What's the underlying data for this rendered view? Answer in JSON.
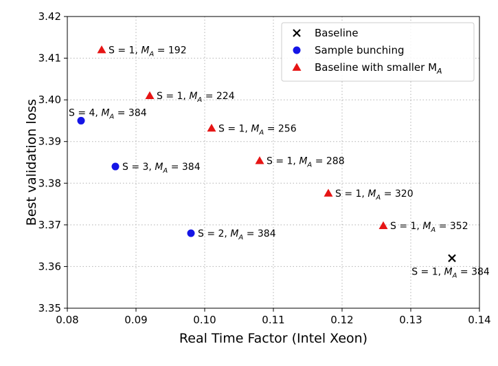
{
  "chart_data": {
    "type": "scatter",
    "xlabel": "Real Time Factor (Intel Xeon)",
    "ylabel": "Best validation loss",
    "xlim": [
      0.08,
      0.14
    ],
    "ylim": [
      3.35,
      3.42
    ],
    "xticks": [
      0.08,
      0.09,
      0.1,
      0.11,
      0.12,
      0.13,
      0.14
    ],
    "xtick_labels": [
      "0.08",
      "0.09",
      "0.10",
      "0.11",
      "0.12",
      "0.13",
      "0.14"
    ],
    "yticks": [
      3.35,
      3.36,
      3.37,
      3.38,
      3.39,
      3.4,
      3.41,
      3.42
    ],
    "ytick_labels": [
      "3.35",
      "3.36",
      "3.37",
      "3.38",
      "3.39",
      "3.40",
      "3.41",
      "3.42"
    ],
    "grid": true,
    "legend_position": "top-right",
    "series": [
      {
        "name": "Baseline",
        "marker": "x",
        "color": "#000000",
        "points": [
          {
            "x": 0.136,
            "y": 3.362,
            "label_s": "S = 1, ",
            "label_m": "M",
            "label_sub": "A",
            "label_val": " = 384",
            "anchor": "below"
          }
        ]
      },
      {
        "name": "Sample bunching",
        "marker": "circle",
        "color": "#1515e6",
        "points": [
          {
            "x": 0.082,
            "y": 3.395,
            "label_s": "S = 4, ",
            "label_m": "M",
            "label_sub": "A",
            "label_val": " = 384",
            "anchor": "above"
          },
          {
            "x": 0.087,
            "y": 3.384,
            "label_s": "S = 3, ",
            "label_m": "M",
            "label_sub": "A",
            "label_val": " = 384",
            "anchor": "right"
          },
          {
            "x": 0.098,
            "y": 3.368,
            "label_s": "S = 2, ",
            "label_m": "M",
            "label_sub": "A",
            "label_val": " = 384",
            "anchor": "right"
          }
        ]
      },
      {
        "name": "Baseline with smaller M",
        "name_sub": "A",
        "marker": "triangle",
        "color": "#e61515",
        "points": [
          {
            "x": 0.085,
            "y": 3.412,
            "label_s": "S = 1, ",
            "label_m": "M",
            "label_sub": "A",
            "label_val": " = 192",
            "anchor": "right"
          },
          {
            "x": 0.092,
            "y": 3.401,
            "label_s": "S = 1, ",
            "label_m": "M",
            "label_sub": "A",
            "label_val": " = 224",
            "anchor": "right"
          },
          {
            "x": 0.101,
            "y": 3.3932,
            "label_s": "S = 1, ",
            "label_m": "M",
            "label_sub": "A",
            "label_val": " = 256",
            "anchor": "right"
          },
          {
            "x": 0.108,
            "y": 3.3854,
            "label_s": "S = 1, ",
            "label_m": "M",
            "label_sub": "A",
            "label_val": " = 288",
            "anchor": "right"
          },
          {
            "x": 0.118,
            "y": 3.3776,
            "label_s": "S = 1, ",
            "label_m": "M",
            "label_sub": "A",
            "label_val": " = 320",
            "anchor": "right"
          },
          {
            "x": 0.126,
            "y": 3.3698,
            "label_s": "S = 1, ",
            "label_m": "M",
            "label_sub": "A",
            "label_val": " = 352",
            "anchor": "right"
          }
        ]
      }
    ]
  }
}
